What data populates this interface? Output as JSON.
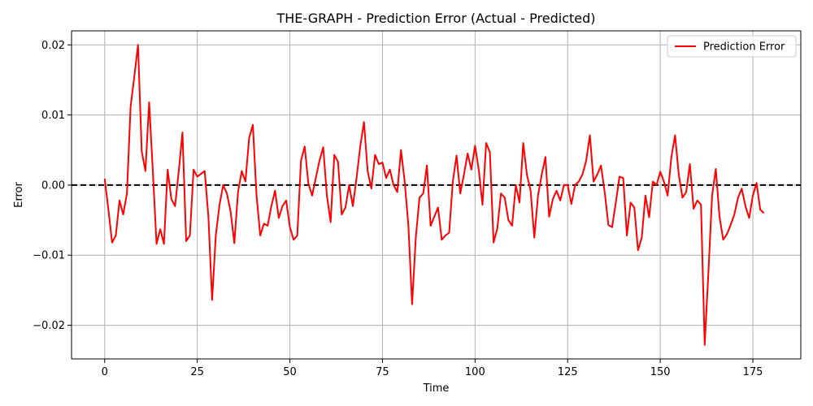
{
  "chart_data": {
    "type": "line",
    "title": "THE-GRAPH - Prediction Error (Actual - Predicted)",
    "xlabel": "Time",
    "ylabel": "Error",
    "xlim": [
      -8.95,
      187.95
    ],
    "ylim": [
      -0.0248,
      0.022
    ],
    "xticks": [
      0,
      25,
      50,
      75,
      100,
      125,
      150,
      175
    ],
    "xtick_labels": [
      "0",
      "25",
      "50",
      "75",
      "100",
      "125",
      "150",
      "175"
    ],
    "yticks": [
      -0.02,
      -0.01,
      0.0,
      0.01,
      0.02
    ],
    "ytick_labels": [
      "−0.02",
      "−0.01",
      "0.00",
      "0.01",
      "0.02"
    ],
    "grid": true,
    "legend": {
      "placement": "top-right",
      "entries": [
        "Prediction Error"
      ]
    },
    "reference_line": {
      "y": 0,
      "style": "dashed",
      "color": "#000000"
    },
    "series": [
      {
        "name": "Prediction Error",
        "color": "#ff0000",
        "x": [
          0,
          1,
          2,
          3,
          4,
          5,
          6,
          7,
          8,
          9,
          10,
          11,
          12,
          13,
          14,
          15,
          16,
          17,
          18,
          19,
          20,
          21,
          22,
          23,
          24,
          25,
          26,
          27,
          28,
          29,
          30,
          31,
          32,
          33,
          34,
          35,
          36,
          37,
          38,
          39,
          40,
          41,
          42,
          43,
          44,
          45,
          46,
          47,
          48,
          49,
          50,
          51,
          52,
          53,
          54,
          55,
          56,
          57,
          58,
          59,
          60,
          61,
          62,
          63,
          64,
          65,
          66,
          67,
          68,
          69,
          70,
          71,
          72,
          73,
          74,
          75,
          76,
          77,
          78,
          79,
          80,
          81,
          82,
          83,
          84,
          85,
          86,
          87,
          88,
          89,
          90,
          91,
          92,
          93,
          94,
          95,
          96,
          97,
          98,
          99,
          100,
          101,
          102,
          103,
          104,
          105,
          106,
          107,
          108,
          109,
          110,
          111,
          112,
          113,
          114,
          115,
          116,
          117,
          118,
          119,
          120,
          121,
          122,
          123,
          124,
          125,
          126,
          127,
          128,
          129,
          130,
          131,
          132,
          133,
          134,
          135,
          136,
          137,
          138,
          139,
          140,
          141,
          142,
          143,
          144,
          145,
          146,
          147,
          148,
          149,
          150,
          151,
          152,
          153,
          154,
          155,
          156,
          157,
          158,
          159,
          160,
          161,
          162,
          163,
          164,
          165,
          166,
          167,
          168,
          169,
          170,
          171,
          172,
          173,
          174,
          175,
          176,
          177,
          178
        ],
        "values": [
          0.0009,
          -0.0035,
          -0.0082,
          -0.0072,
          -0.0022,
          -0.0042,
          -0.0012,
          0.0112,
          0.0155,
          0.02,
          0.0048,
          0.002,
          0.0118,
          0.002,
          -0.0084,
          -0.0063,
          -0.0084,
          0.0022,
          -0.002,
          -0.003,
          0.002,
          0.0075,
          -0.008,
          -0.0072,
          0.0022,
          0.0012,
          0.0016,
          0.002,
          -0.0045,
          -0.0164,
          -0.0072,
          -0.0028,
          0.0,
          -0.0012,
          -0.0038,
          -0.0083,
          -0.001,
          0.002,
          0.0005,
          0.0067,
          0.0086,
          -0.0015,
          -0.0072,
          -0.0055,
          -0.0058,
          -0.003,
          -0.0008,
          -0.0047,
          -0.003,
          -0.0022,
          -0.006,
          -0.0078,
          -0.0072,
          0.0035,
          0.0055,
          0.0002,
          -0.0015,
          0.001,
          0.0035,
          0.0054,
          -0.0015,
          -0.0053,
          0.0043,
          0.0033,
          -0.0042,
          -0.0032,
          0.0,
          -0.003,
          0.001,
          0.0055,
          0.009,
          0.002,
          -0.0005,
          0.0043,
          0.003,
          0.0032,
          0.001,
          0.0022,
          0.0,
          -0.001,
          0.005,
          0.0005,
          -0.0058,
          -0.017,
          -0.0075,
          -0.0018,
          -0.0012,
          0.0028,
          -0.0058,
          -0.0045,
          -0.0032,
          -0.0078,
          -0.0072,
          -0.0068,
          0.0005,
          0.0042,
          -0.0012,
          0.0015,
          0.0045,
          0.0022,
          0.0056,
          0.0022,
          -0.0028,
          0.006,
          0.0047,
          -0.0082,
          -0.0062,
          -0.0012,
          -0.0018,
          -0.005,
          -0.0058,
          0.0,
          -0.0025,
          0.006,
          0.0015,
          -0.0008,
          -0.0075,
          -0.0015,
          0.0015,
          0.004,
          -0.0045,
          -0.002,
          -0.0008,
          -0.0022,
          0.0,
          0.0,
          -0.0027,
          0.0,
          0.0005,
          0.0015,
          0.0035,
          0.0071,
          0.0005,
          0.0015,
          0.0028,
          -0.001,
          -0.0057,
          -0.006,
          -0.0025,
          0.0012,
          0.001,
          -0.0072,
          -0.0025,
          -0.0032,
          -0.0093,
          -0.0075,
          -0.0015,
          -0.0046,
          0.0005,
          0.0,
          0.0019,
          0.0005,
          -0.0015,
          0.004,
          0.0071,
          0.0015,
          -0.0018,
          -0.001,
          0.003,
          -0.0034,
          -0.0022,
          -0.0028,
          -0.0228,
          -0.0125,
          -0.0015,
          0.0023,
          -0.0045,
          -0.0078,
          -0.007,
          -0.0057,
          -0.0042,
          -0.0018,
          -0.0005,
          -0.003,
          -0.0047,
          -0.0015,
          0.0003,
          -0.0035,
          -0.004
        ]
      }
    ]
  }
}
